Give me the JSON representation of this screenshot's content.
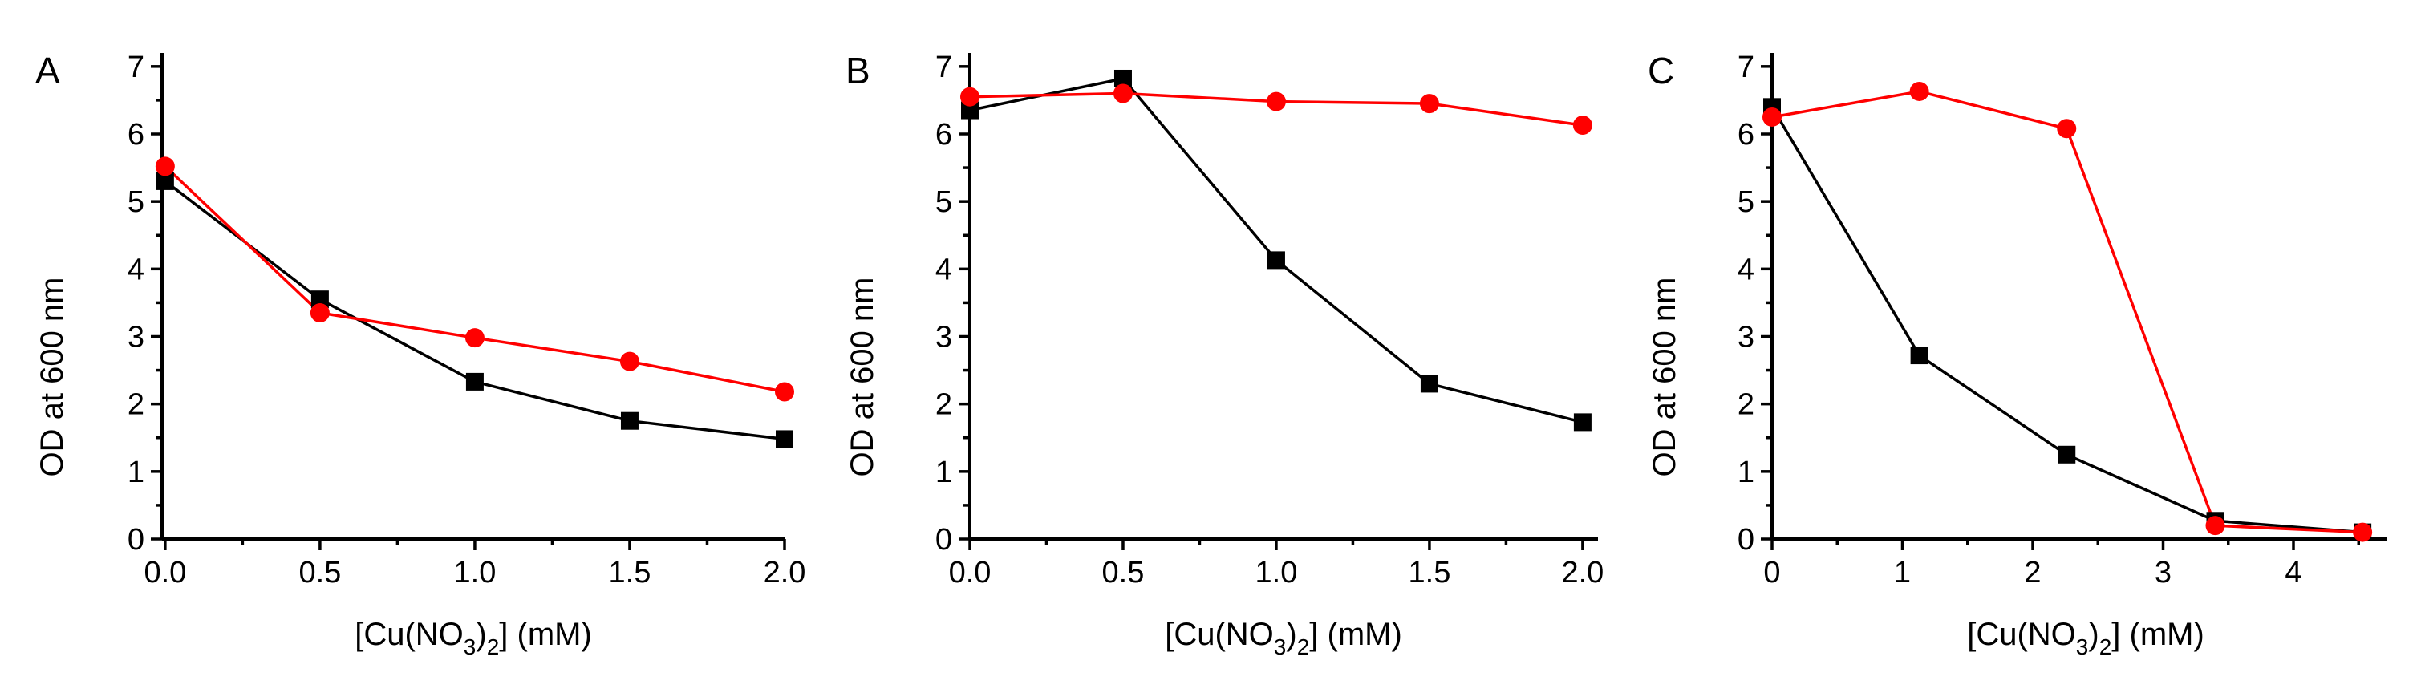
{
  "colors": {
    "black_series": "#000000",
    "red_series": "#ff0000"
  },
  "chart_data": [
    {
      "type": "line",
      "panel": "A",
      "xlabel": {
        "pre": "[Cu(NO",
        "sub": "3",
        "mid": ")",
        "sub2": "2",
        "post": "] (mM)"
      },
      "ylabel": "OD at 600 nm",
      "xlim": [
        -0.01,
        2.0
      ],
      "ylim": [
        0,
        7.2
      ],
      "x_ticks": [
        "0.0",
        "0.5",
        "1.0",
        "1.5",
        "2.0"
      ],
      "x_tick_values": [
        0,
        0.5,
        1.0,
        1.5,
        2.0
      ],
      "y_ticks": [
        "0",
        "1",
        "2",
        "3",
        "4",
        "5",
        "6",
        "7"
      ],
      "y_tick_values": [
        0,
        1,
        2,
        3,
        4,
        5,
        6,
        7
      ],
      "series": [
        {
          "marker": "square",
          "color": "#000000",
          "x": [
            0,
            0.5,
            1.0,
            1.5,
            2.0
          ],
          "y": [
            5.3,
            3.55,
            2.33,
            1.75,
            1.48
          ]
        },
        {
          "marker": "circle",
          "color": "#ff0000",
          "x": [
            0,
            0.5,
            1.0,
            1.5,
            2.0
          ],
          "y": [
            5.52,
            3.35,
            2.98,
            2.63,
            2.18
          ]
        }
      ]
    },
    {
      "type": "line",
      "panel": "B",
      "xlabel": {
        "pre": "[Cu(NO",
        "sub": "3",
        "mid": ")",
        "sub2": "2",
        "post": "] (mM)"
      },
      "ylabel": "OD at 600 nm",
      "xlim": [
        0,
        2.05
      ],
      "ylim": [
        0,
        7.2
      ],
      "x_ticks": [
        "0.0",
        "0.5",
        "1.0",
        "1.5",
        "2.0"
      ],
      "x_tick_values": [
        0,
        0.5,
        1.0,
        1.5,
        2.0
      ],
      "y_ticks": [
        "0",
        "1",
        "2",
        "3",
        "4",
        "5",
        "6",
        "7"
      ],
      "y_tick_values": [
        0,
        1,
        2,
        3,
        4,
        5,
        6,
        7
      ],
      "series": [
        {
          "marker": "square",
          "color": "#000000",
          "x": [
            0,
            0.5,
            1.0,
            1.5,
            2.0
          ],
          "y": [
            6.35,
            6.82,
            4.13,
            2.3,
            1.73
          ]
        },
        {
          "marker": "circle",
          "color": "#ff0000",
          "x": [
            0,
            0.5,
            1.0,
            1.5,
            2.0
          ],
          "y": [
            6.55,
            6.6,
            6.48,
            6.45,
            6.13
          ]
        }
      ]
    },
    {
      "type": "line",
      "panel": "C",
      "xlabel": {
        "pre": "[Cu(NO",
        "sub": "3",
        "mid": ")",
        "sub2": "2",
        "post": "] (mM)"
      },
      "ylabel": "OD at 600 nm",
      "xlim": [
        0,
        4.72
      ],
      "ylim": [
        0,
        7.2
      ],
      "x_ticks": [
        "0",
        "1",
        "2",
        "3",
        "4"
      ],
      "x_tick_values": [
        0,
        1,
        2,
        3,
        4
      ],
      "y_ticks": [
        "0",
        "1",
        "2",
        "3",
        "4",
        "5",
        "6",
        "7"
      ],
      "y_tick_values": [
        0,
        1,
        2,
        3,
        4,
        5,
        6,
        7
      ],
      "series": [
        {
          "marker": "square",
          "color": "#000000",
          "x": [
            0,
            1.13,
            2.26,
            3.4,
            4.53
          ],
          "y": [
            6.4,
            2.72,
            1.25,
            0.27,
            0.1
          ]
        },
        {
          "marker": "circle",
          "color": "#ff0000",
          "x": [
            0,
            1.13,
            2.26,
            3.4,
            4.53
          ],
          "y": [
            6.25,
            6.63,
            6.08,
            0.2,
            0.1
          ]
        }
      ]
    }
  ]
}
